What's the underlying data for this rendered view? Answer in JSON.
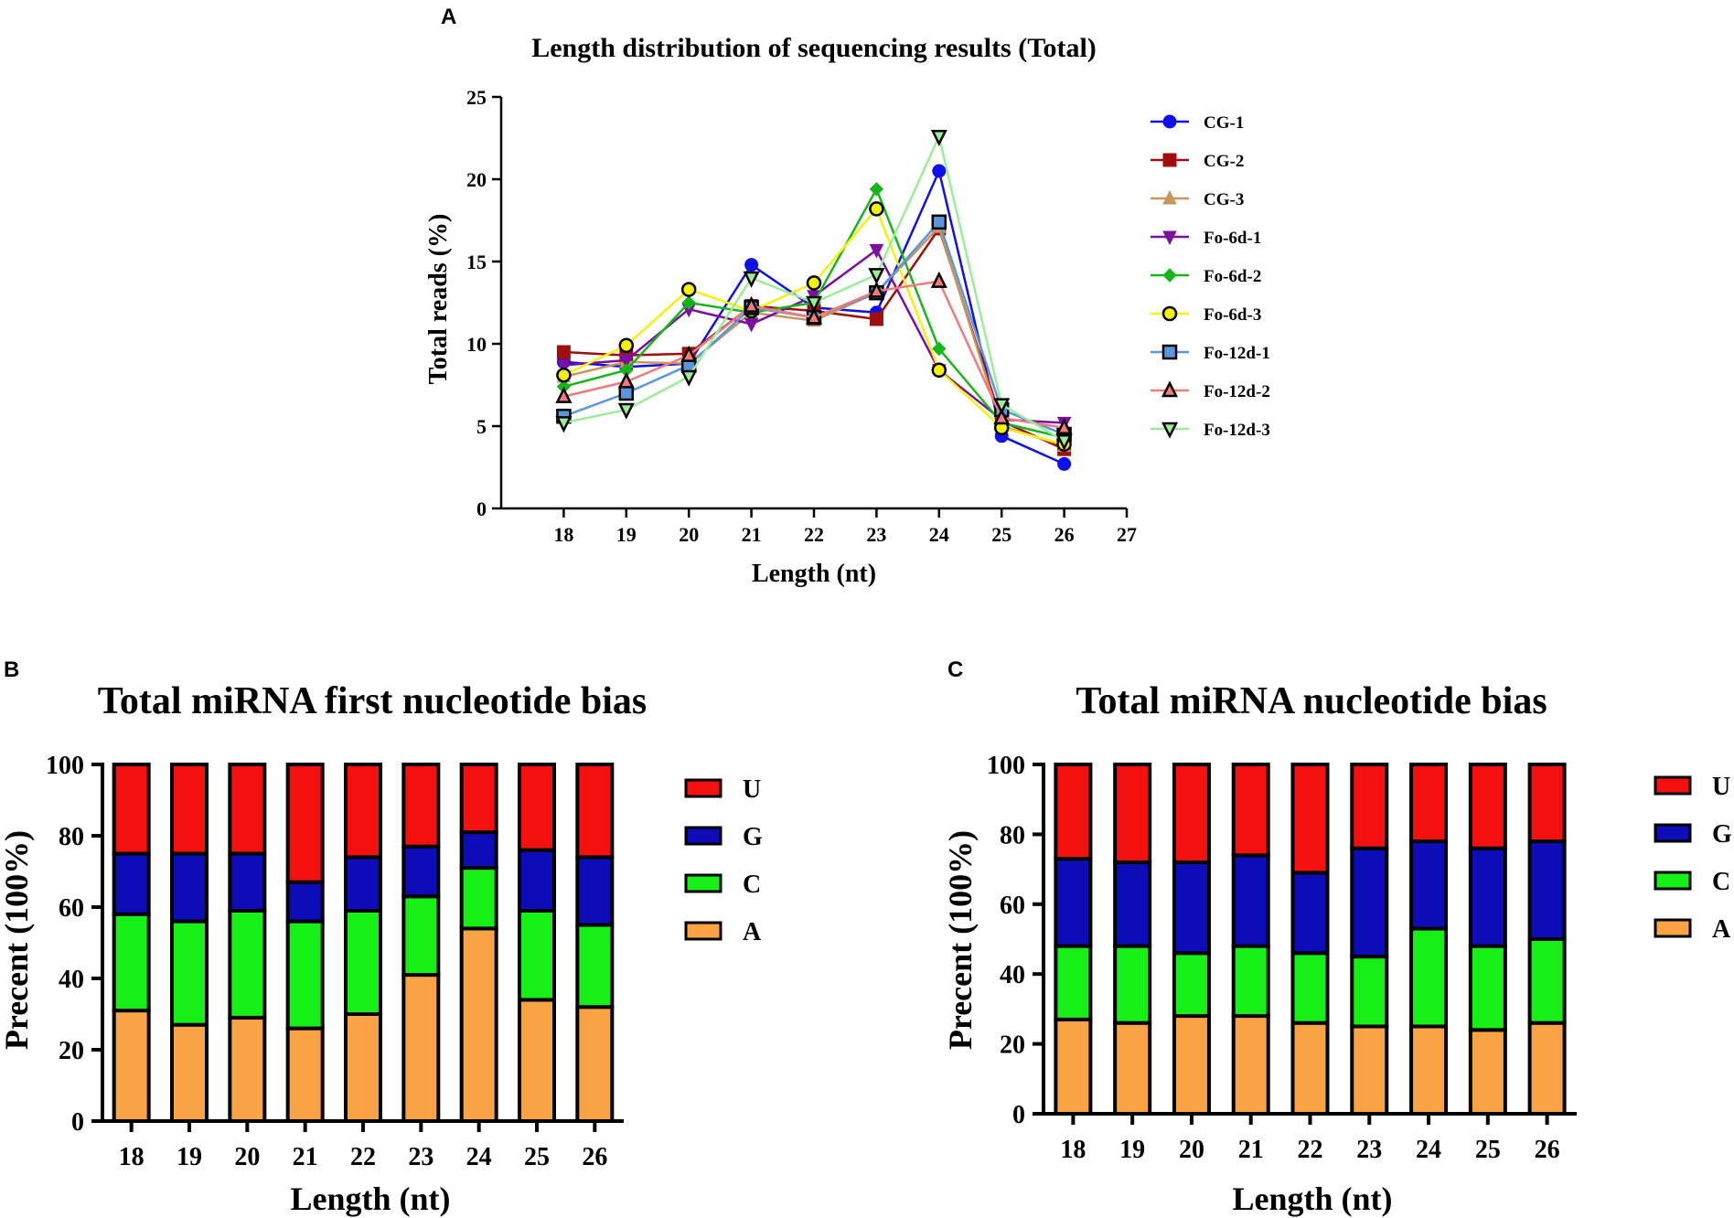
{
  "panels": {
    "a": "A",
    "b": "B",
    "c": "C"
  },
  "chart_data": [
    {
      "type": "line",
      "title": "Length distribution of sequencing results (Total)",
      "xlabel": "Length (nt)",
      "ylabel": "Total reads (%)",
      "xlim": [
        17,
        27
      ],
      "ylim": [
        0,
        25
      ],
      "x_ticks": [
        18,
        19,
        20,
        21,
        22,
        23,
        24,
        25,
        26,
        27
      ],
      "y_ticks": [
        0,
        5,
        10,
        15,
        20,
        25
      ],
      "legend_position": "right",
      "x": [
        18,
        19,
        20,
        21,
        22,
        23,
        24,
        25,
        26
      ],
      "series": [
        {
          "name": "CG-1",
          "color": "#1010e8",
          "marker": "circle",
          "values": [
            8.9,
            8.6,
            8.8,
            14.8,
            12.2,
            11.9,
            20.5,
            4.4,
            2.7
          ]
        },
        {
          "name": "CG-2",
          "color": "#a00e0e",
          "marker": "square",
          "values": [
            9.5,
            9.3,
            9.4,
            12.3,
            12.0,
            11.5,
            17.0,
            5.3,
            3.6
          ]
        },
        {
          "name": "CG-3",
          "color": "#c8965a",
          "marker": "triangle-up",
          "values": [
            8.0,
            8.9,
            8.8,
            11.9,
            11.4,
            13.1,
            17.1,
            5.0,
            3.8
          ]
        },
        {
          "name": "Fo-6d-1",
          "color": "#7a0fa0",
          "marker": "triangle-down",
          "values": [
            8.7,
            9.0,
            12.1,
            11.2,
            12.9,
            15.7,
            8.4,
            5.4,
            5.2
          ]
        },
        {
          "name": "Fo-6d-2",
          "color": "#17b51c",
          "marker": "diamond",
          "values": [
            7.4,
            8.4,
            12.5,
            11.9,
            12.5,
            19.4,
            9.7,
            5.2,
            4.3
          ]
        },
        {
          "name": "Fo-6d-3",
          "color": "#f2f20a",
          "marker": "circle-open",
          "values": [
            8.1,
            9.9,
            13.3,
            12.0,
            13.7,
            18.2,
            8.4,
            4.9,
            3.9
          ]
        },
        {
          "name": "Fo-12d-1",
          "color": "#5a96de",
          "marker": "square-open",
          "values": [
            5.6,
            7.0,
            8.7,
            12.2,
            11.6,
            13.1,
            17.4,
            6.0,
            4.5
          ]
        },
        {
          "name": "Fo-12d-2",
          "color": "#f27a7a",
          "marker": "triangle-up-open",
          "values": [
            6.8,
            7.7,
            9.3,
            12.3,
            11.6,
            13.2,
            13.8,
            5.5,
            4.9
          ]
        },
        {
          "name": "Fo-12d-3",
          "color": "#9aee9a",
          "marker": "triangle-down-open",
          "values": [
            5.2,
            6.0,
            8.0,
            14.0,
            12.5,
            14.2,
            22.6,
            6.3,
            4.1
          ]
        }
      ]
    },
    {
      "type": "bar",
      "stacked": true,
      "title": "Total miRNA first nucleotide bias",
      "xlabel": "Length (nt)",
      "ylabel": "Precent (100%)",
      "ylim": [
        0,
        100
      ],
      "y_ticks": [
        0,
        20,
        40,
        60,
        80,
        100
      ],
      "legend_position": "right",
      "categories": [
        "18",
        "19",
        "20",
        "21",
        "22",
        "23",
        "24",
        "25",
        "26"
      ],
      "series": [
        {
          "name": "A",
          "color": "#f9a345",
          "values": [
            31,
            27,
            29,
            26,
            30,
            41,
            54,
            34,
            32
          ]
        },
        {
          "name": "C",
          "color": "#16f016",
          "values": [
            27,
            29,
            30,
            30,
            29,
            22,
            17,
            25,
            23
          ]
        },
        {
          "name": "G",
          "color": "#0c0cb8",
          "values": [
            17,
            19,
            16,
            11,
            15,
            14,
            10,
            17,
            19
          ]
        },
        {
          "name": "U",
          "color": "#f51010",
          "values": [
            25,
            25,
            25,
            33,
            26,
            23,
            19,
            24,
            26
          ]
        }
      ],
      "legend_order": [
        "U",
        "G",
        "C",
        "A"
      ]
    },
    {
      "type": "bar",
      "stacked": true,
      "title": "Total miRNA nucleotide bias",
      "xlabel": "Length (nt)",
      "ylabel": "Precent (100%)",
      "ylim": [
        0,
        100
      ],
      "y_ticks": [
        0,
        20,
        40,
        60,
        80,
        100
      ],
      "legend_position": "right",
      "categories": [
        "18",
        "19",
        "20",
        "21",
        "22",
        "23",
        "24",
        "25",
        "26"
      ],
      "series": [
        {
          "name": "A",
          "color": "#f9a345",
          "values": [
            27,
            26,
            28,
            28,
            26,
            25,
            25,
            24,
            26
          ]
        },
        {
          "name": "C",
          "color": "#16f016",
          "values": [
            21,
            22,
            18,
            20,
            20,
            20,
            28,
            24,
            24
          ]
        },
        {
          "name": "G",
          "color": "#0c0cb8",
          "values": [
            25,
            24,
            26,
            26,
            23,
            31,
            25,
            28,
            28
          ]
        },
        {
          "name": "U",
          "color": "#f51010",
          "values": [
            27,
            28,
            28,
            26,
            31,
            24,
            22,
            24,
            22
          ]
        }
      ],
      "legend_order": [
        "U",
        "G",
        "C",
        "A"
      ]
    }
  ]
}
